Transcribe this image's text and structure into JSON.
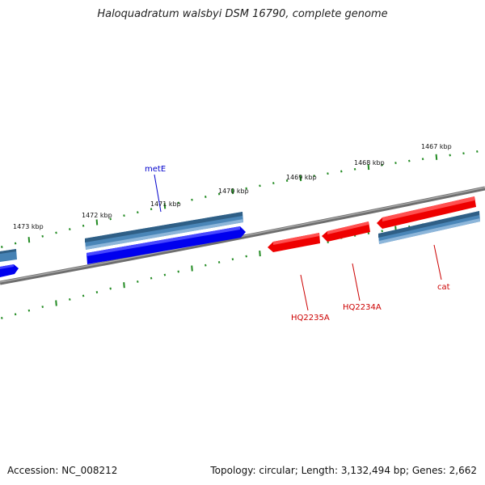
{
  "title": "Haloquadratum walsbyi DSM 16790, complete genome",
  "footer": {
    "accession": "Accession: NC_008212",
    "summary": "Topology: circular; Length: 3,132,494 bp; Genes: 2,662"
  },
  "colors": {
    "backbone": "#808080",
    "tick": "#228b22",
    "forward_gene": "#0000ff",
    "forward_cds": "#4682b4",
    "reverse_gene": "#ff0000",
    "label_blue": "#0000cc",
    "label_red": "#cc0000"
  },
  "scale": {
    "unit": "kbp",
    "major_labels": [
      "1467 kbp",
      "1468 kbp",
      "1469 kbp",
      "1470 kbp",
      "1471 kbp",
      "1472 kbp",
      "1473 kbp"
    ]
  },
  "genes": [
    {
      "name": "metE",
      "strand": "forward",
      "label_color": "blue"
    },
    {
      "name": "HQ2235A",
      "strand": "reverse",
      "label_color": "red"
    },
    {
      "name": "HQ2234A",
      "strand": "reverse",
      "label_color": "red"
    },
    {
      "name": "cat",
      "strand": "reverse",
      "label_color": "red"
    }
  ]
}
